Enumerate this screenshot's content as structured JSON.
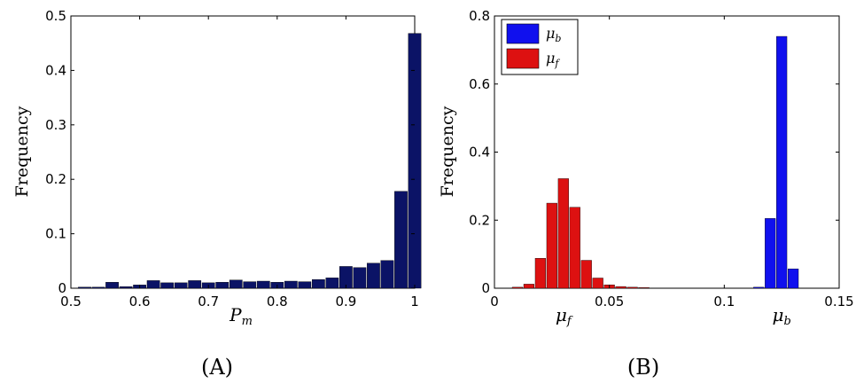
{
  "chart_data": [
    {
      "panel": "(A)",
      "type": "bar",
      "ylabel": "Frequency",
      "xlabel": "P",
      "xlabel_sub": "m",
      "xlim": [
        0.5,
        1.0
      ],
      "ylim": [
        0,
        0.5
      ],
      "xticks": [
        "0.5",
        "0.6",
        "0.7",
        "0.8",
        "0.9",
        "1"
      ],
      "yticks": [
        "0",
        "0.1",
        "0.2",
        "0.3",
        "0.4",
        "0.5"
      ],
      "bin_width": 0.02,
      "color": "#0b1366",
      "x": [
        0.52,
        0.54,
        0.56,
        0.58,
        0.6,
        0.62,
        0.64,
        0.66,
        0.68,
        0.7,
        0.72,
        0.74,
        0.76,
        0.78,
        0.8,
        0.82,
        0.84,
        0.86,
        0.88,
        0.9,
        0.92,
        0.94,
        0.96,
        0.98,
        1.0
      ],
      "values": [
        0.002,
        0.002,
        0.011,
        0.003,
        0.006,
        0.014,
        0.01,
        0.01,
        0.014,
        0.01,
        0.011,
        0.015,
        0.012,
        0.013,
        0.011,
        0.013,
        0.012,
        0.016,
        0.019,
        0.04,
        0.038,
        0.046,
        0.051,
        0.178,
        0.468
      ]
    },
    {
      "panel": "(B)",
      "type": "bar",
      "ylabel": "Frequency",
      "xlim": [
        0,
        0.15
      ],
      "ylim": [
        0,
        0.8
      ],
      "xticks": [
        "0",
        "0.05",
        "0.1",
        "0.15"
      ],
      "yticks": [
        "0",
        "0.2",
        "0.4",
        "0.6",
        "0.8"
      ],
      "bin_width": 0.005,
      "axis_marks": [
        {
          "sym": "μ",
          "sub": "f",
          "at": 0.03
        },
        {
          "sym": "μ",
          "sub": "b",
          "at": 0.125
        }
      ],
      "legend": {
        "placement": "top-left",
        "entries": [
          {
            "sym": "μ",
            "sub": "b",
            "color": "#1010ee"
          },
          {
            "sym": "μ",
            "sub": "f",
            "color": "#dd1111"
          }
        ]
      },
      "series": [
        {
          "color": "#dd1111",
          "x": [
            0.01,
            0.015,
            0.02,
            0.025,
            0.03,
            0.035,
            0.04,
            0.045,
            0.05,
            0.055,
            0.06,
            0.065
          ],
          "values": [
            0.003,
            0.012,
            0.088,
            0.25,
            0.322,
            0.238,
            0.082,
            0.03,
            0.01,
            0.005,
            0.003,
            0.002
          ]
        },
        {
          "color": "#1010ee",
          "x": [
            0.115,
            0.12,
            0.125,
            0.13
          ],
          "values": [
            0.003,
            0.205,
            0.74,
            0.057
          ]
        }
      ]
    }
  ]
}
